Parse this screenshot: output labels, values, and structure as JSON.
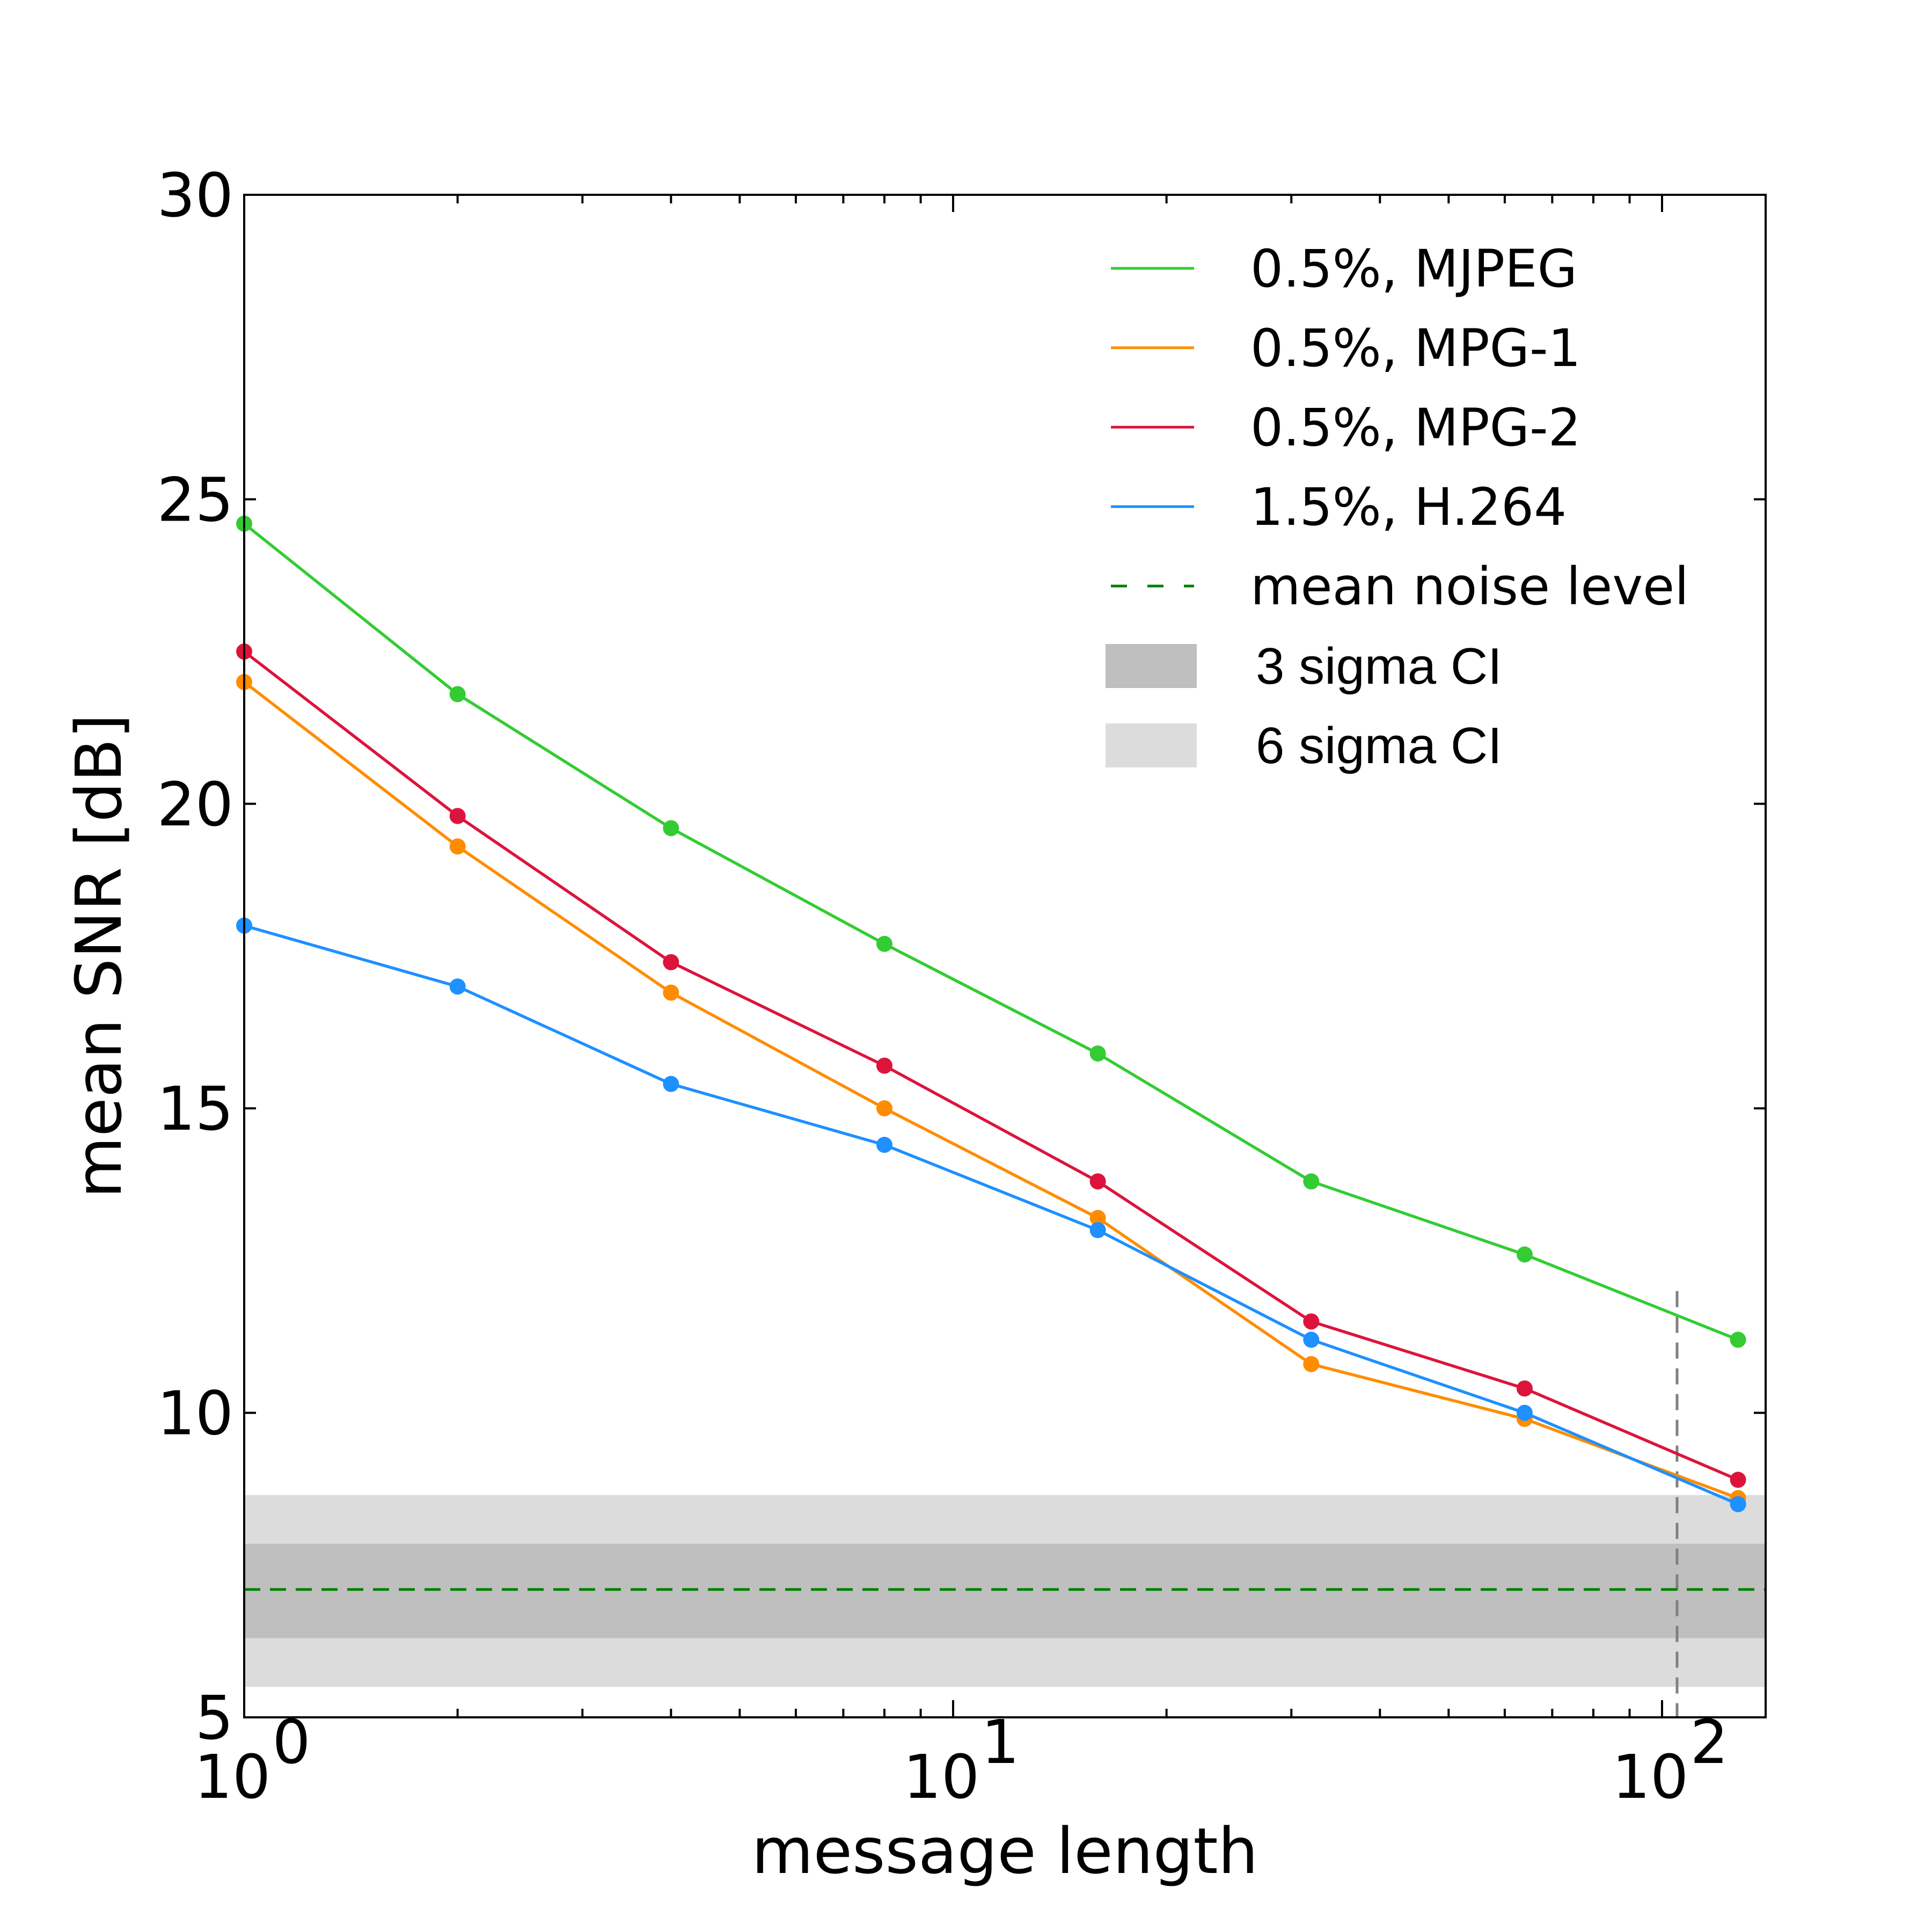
{
  "chart_data": {
    "type": "line",
    "xlabel": "message length",
    "ylabel": "mean SNR [dB]",
    "xscale": "log",
    "xlim": [
      1,
      140
    ],
    "ylim": [
      5,
      30
    ],
    "yticks": [
      5,
      10,
      15,
      20,
      25,
      30
    ],
    "xticks": [
      {
        "value": 1,
        "base": "10",
        "exp": "0"
      },
      {
        "value": 10,
        "base": "10",
        "exp": "1"
      },
      {
        "value": 100,
        "base": "10",
        "exp": "2"
      }
    ],
    "x": [
      1,
      2,
      4,
      8,
      16,
      32,
      64,
      128
    ],
    "series": [
      {
        "name": "0.5%, MJPEG",
        "color": "#33cc33",
        "values": [
          24.6,
          21.8,
          19.6,
          17.7,
          15.9,
          13.8,
          12.6,
          11.2
        ]
      },
      {
        "name": "0.5%, MPG-1",
        "color": "#ff8c00",
        "values": [
          22.0,
          19.3,
          16.9,
          15.0,
          13.2,
          10.8,
          9.9,
          8.6
        ]
      },
      {
        "name": "0.5%, MPG-2",
        "color": "#dc143c",
        "values": [
          22.5,
          19.8,
          17.4,
          15.7,
          13.8,
          11.5,
          10.4,
          8.9
        ]
      },
      {
        "name": "1.5%, H.264",
        "color": "#1e90ff",
        "values": [
          18.0,
          17.0,
          15.4,
          14.4,
          13.0,
          11.2,
          10.0,
          8.5
        ]
      }
    ],
    "noise": {
      "name": "mean noise level",
      "value": 7.1,
      "color": "#008000"
    },
    "bands": [
      {
        "name": "6 sigma CI",
        "low": 5.5,
        "high": 8.65,
        "color": "#dcdcdc"
      },
      {
        "name": "3 sigma CI",
        "low": 6.3,
        "high": 7.85,
        "color": "#bfbfbf"
      }
    ],
    "vline": {
      "x": 105,
      "ymax": 12.0,
      "color": "#808080"
    },
    "legend_position": "top-right",
    "legend_order": [
      "0.5%, MJPEG",
      "0.5%, MPG-1",
      "0.5%, MPG-2",
      "1.5%, H.264",
      "mean noise level",
      "3 sigma CI",
      "6 sigma CI"
    ]
  }
}
